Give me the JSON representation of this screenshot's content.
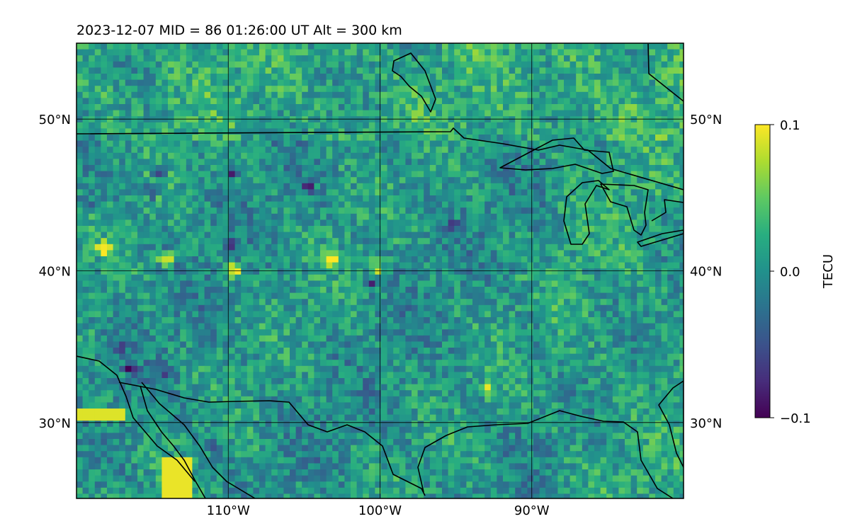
{
  "chart_data": {
    "type": "heatmap",
    "title": "2023-12-07  MID =  86    01:26:00  UT  Alt = 300 km",
    "x_tick_labels": [
      "110°W",
      "100°W",
      "90°W"
    ],
    "x_ticks": [
      -110,
      -100,
      -90
    ],
    "y_tick_labels": [
      "50°N",
      "40°N",
      "30°N"
    ],
    "y_ticks": [
      50,
      40,
      30
    ],
    "xlim": [
      -120,
      -80
    ],
    "ylim": [
      25,
      55
    ],
    "grid": true,
    "colorbar": {
      "label": "TECU",
      "tick_labels": [
        "0.1",
        "0.0",
        "−0.1"
      ],
      "ticks": [
        0.1,
        0.0,
        -0.1
      ],
      "range": [
        -0.1,
        0.1
      ],
      "colormap": "viridis"
    },
    "colormap_stops": [
      "#440154",
      "#472d7b",
      "#3b528b",
      "#2c728e",
      "#21918c",
      "#28ae80",
      "#5ec962",
      "#addc30",
      "#fde725"
    ],
    "colors": {
      "coastline": "#000000",
      "grid": "#000000",
      "background": "#ffffff"
    }
  }
}
